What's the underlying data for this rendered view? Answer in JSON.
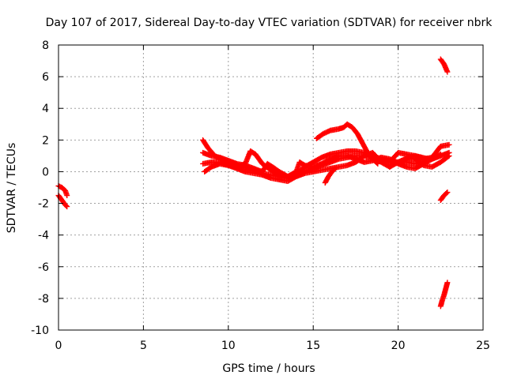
{
  "chart_data": {
    "type": "scatter",
    "title": "Day 107 of 2017, Sidereal Day-to-day VTEC variation (SDTVAR) for receiver nbrk",
    "xlabel": "GPS time / hours",
    "ylabel": "SDTVAR / TECUs",
    "xlim": [
      0,
      25
    ],
    "ylim": [
      -10,
      8
    ],
    "xticks": [
      0,
      5,
      10,
      15,
      20,
      25
    ],
    "yticks": [
      -10,
      -8,
      -6,
      -4,
      -2,
      0,
      2,
      4,
      6,
      8
    ],
    "grid": true,
    "marker": "plus",
    "series_color": "#ff0000",
    "tracks": [
      [
        [
          0.0,
          -1.5
        ],
        [
          0.2,
          -1.8
        ],
        [
          0.4,
          -2.1
        ],
        [
          0.5,
          -2.2
        ]
      ],
      [
        [
          0.0,
          -0.9
        ],
        [
          0.2,
          -1.0
        ],
        [
          0.4,
          -1.2
        ],
        [
          0.5,
          -1.5
        ]
      ],
      [
        [
          8.5,
          2.0
        ],
        [
          8.8,
          1.5
        ],
        [
          9.2,
          1.0
        ],
        [
          9.6,
          0.8
        ],
        [
          10.0,
          0.6
        ],
        [
          10.4,
          0.5
        ],
        [
          10.8,
          0.3
        ],
        [
          11.2,
          0.2
        ],
        [
          11.6,
          0.1
        ],
        [
          12.0,
          -0.1
        ],
        [
          12.5,
          -0.2
        ],
        [
          13.0,
          -0.3
        ],
        [
          13.5,
          -0.4
        ],
        [
          14.0,
          -0.3
        ],
        [
          14.5,
          0.0
        ],
        [
          15.0,
          0.2
        ],
        [
          15.5,
          0.4
        ],
        [
          16.0,
          0.6
        ],
        [
          16.5,
          0.8
        ],
        [
          17.0,
          0.9
        ],
        [
          17.5,
          1.0
        ],
        [
          18.0,
          1.0
        ],
        [
          18.5,
          0.9
        ],
        [
          19.0,
          0.8
        ],
        [
          19.5,
          0.7
        ],
        [
          20.0,
          0.6
        ],
        [
          20.5,
          0.6
        ],
        [
          21.0,
          0.5
        ],
        [
          21.5,
          0.6
        ],
        [
          22.0,
          0.8
        ],
        [
          22.5,
          1.0
        ],
        [
          23.0,
          1.2
        ]
      ],
      [
        [
          8.5,
          0.5
        ],
        [
          9.0,
          0.6
        ],
        [
          9.5,
          0.6
        ],
        [
          10.0,
          0.4
        ],
        [
          10.5,
          0.3
        ],
        [
          11.0,
          0.5
        ],
        [
          11.3,
          1.3
        ],
        [
          11.6,
          1.1
        ],
        [
          12.0,
          0.5
        ],
        [
          12.5,
          0.1
        ],
        [
          13.0,
          -0.2
        ],
        [
          13.5,
          -0.3
        ],
        [
          14.0,
          -0.1
        ],
        [
          14.5,
          0.3
        ],
        [
          15.0,
          0.6
        ],
        [
          15.5,
          0.9
        ],
        [
          16.0,
          1.1
        ],
        [
          16.5,
          1.2
        ],
        [
          17.0,
          1.3
        ],
        [
          17.5,
          1.3
        ],
        [
          18.0,
          1.2
        ],
        [
          18.5,
          1.0
        ],
        [
          19.0,
          0.8
        ],
        [
          19.5,
          0.6
        ],
        [
          20.0,
          1.2
        ],
        [
          20.5,
          1.1
        ],
        [
          21.0,
          1.0
        ],
        [
          21.5,
          0.8
        ],
        [
          22.0,
          0.9
        ],
        [
          22.5,
          1.6
        ],
        [
          23.0,
          1.7
        ]
      ],
      [
        [
          8.5,
          1.2
        ],
        [
          9.0,
          1.0
        ],
        [
          9.5,
          0.9
        ],
        [
          10.0,
          0.7
        ],
        [
          10.5,
          0.5
        ],
        [
          11.0,
          0.4
        ],
        [
          11.5,
          0.2
        ],
        [
          12.0,
          0.0
        ],
        [
          12.3,
          0.5
        ],
        [
          12.6,
          0.3
        ],
        [
          13.0,
          0.0
        ],
        [
          13.5,
          -0.3
        ],
        [
          14.0,
          0.0
        ],
        [
          14.2,
          0.6
        ],
        [
          14.5,
          0.4
        ],
        [
          15.0,
          0.3
        ],
        [
          15.5,
          0.5
        ],
        [
          16.0,
          0.8
        ],
        [
          16.5,
          1.0
        ],
        [
          17.0,
          1.0
        ],
        [
          17.5,
          0.8
        ],
        [
          18.0,
          0.6
        ],
        [
          18.5,
          0.7
        ],
        [
          19.0,
          0.9
        ],
        [
          19.5,
          0.8
        ],
        [
          20.0,
          0.5
        ],
        [
          20.5,
          0.3
        ],
        [
          21.0,
          0.2
        ],
        [
          21.5,
          0.5
        ],
        [
          22.0,
          0.8
        ],
        [
          22.5,
          1.1
        ]
      ],
      [
        [
          8.6,
          0.0
        ],
        [
          9.0,
          0.3
        ],
        [
          9.5,
          0.5
        ],
        [
          10.0,
          0.4
        ],
        [
          10.5,
          0.2
        ],
        [
          11.0,
          0.0
        ],
        [
          11.5,
          -0.1
        ],
        [
          12.0,
          -0.2
        ],
        [
          12.5,
          -0.4
        ],
        [
          13.0,
          -0.5
        ],
        [
          13.5,
          -0.6
        ],
        [
          14.0,
          -0.3
        ],
        [
          14.5,
          -0.1
        ],
        [
          15.0,
          0.0
        ],
        [
          15.5,
          0.1
        ],
        [
          16.0,
          0.2
        ],
        [
          16.5,
          0.3
        ],
        [
          17.0,
          0.4
        ],
        [
          17.5,
          0.6
        ],
        [
          18.0,
          1.0
        ],
        [
          18.5,
          1.2
        ],
        [
          19.0,
          0.6
        ],
        [
          19.5,
          0.3
        ],
        [
          20.0,
          0.6
        ],
        [
          20.5,
          0.8
        ],
        [
          21.0,
          0.8
        ],
        [
          21.5,
          0.4
        ],
        [
          22.0,
          0.3
        ],
        [
          22.5,
          0.6
        ],
        [
          23.0,
          1.0
        ]
      ],
      [
        [
          15.2,
          2.1
        ],
        [
          15.6,
          2.4
        ],
        [
          16.0,
          2.6
        ],
        [
          16.5,
          2.7
        ],
        [
          16.8,
          2.8
        ],
        [
          17.0,
          3.0
        ],
        [
          17.3,
          2.8
        ],
        [
          17.6,
          2.4
        ],
        [
          17.9,
          1.8
        ],
        [
          18.2,
          1.2
        ],
        [
          18.5,
          0.8
        ],
        [
          18.8,
          0.5
        ]
      ],
      [
        [
          15.7,
          -0.7
        ],
        [
          15.9,
          -0.3
        ],
        [
          16.1,
          0.0
        ],
        [
          16.3,
          0.2
        ]
      ],
      [
        [
          19.5,
          0.3
        ],
        [
          19.8,
          0.5
        ],
        [
          20.2,
          0.7
        ],
        [
          20.6,
          0.9
        ],
        [
          21.0,
          1.0
        ],
        [
          21.4,
          0.9
        ],
        [
          21.8,
          0.8
        ]
      ],
      [
        [
          22.5,
          7.1
        ],
        [
          22.7,
          6.8
        ],
        [
          22.9,
          6.3
        ]
      ],
      [
        [
          22.5,
          -1.8
        ],
        [
          22.7,
          -1.5
        ],
        [
          22.9,
          -1.3
        ]
      ],
      [
        [
          22.5,
          -8.5
        ],
        [
          22.6,
          -8.1
        ],
        [
          22.7,
          -7.8
        ],
        [
          22.8,
          -7.4
        ],
        [
          22.9,
          -7.0
        ]
      ]
    ]
  }
}
